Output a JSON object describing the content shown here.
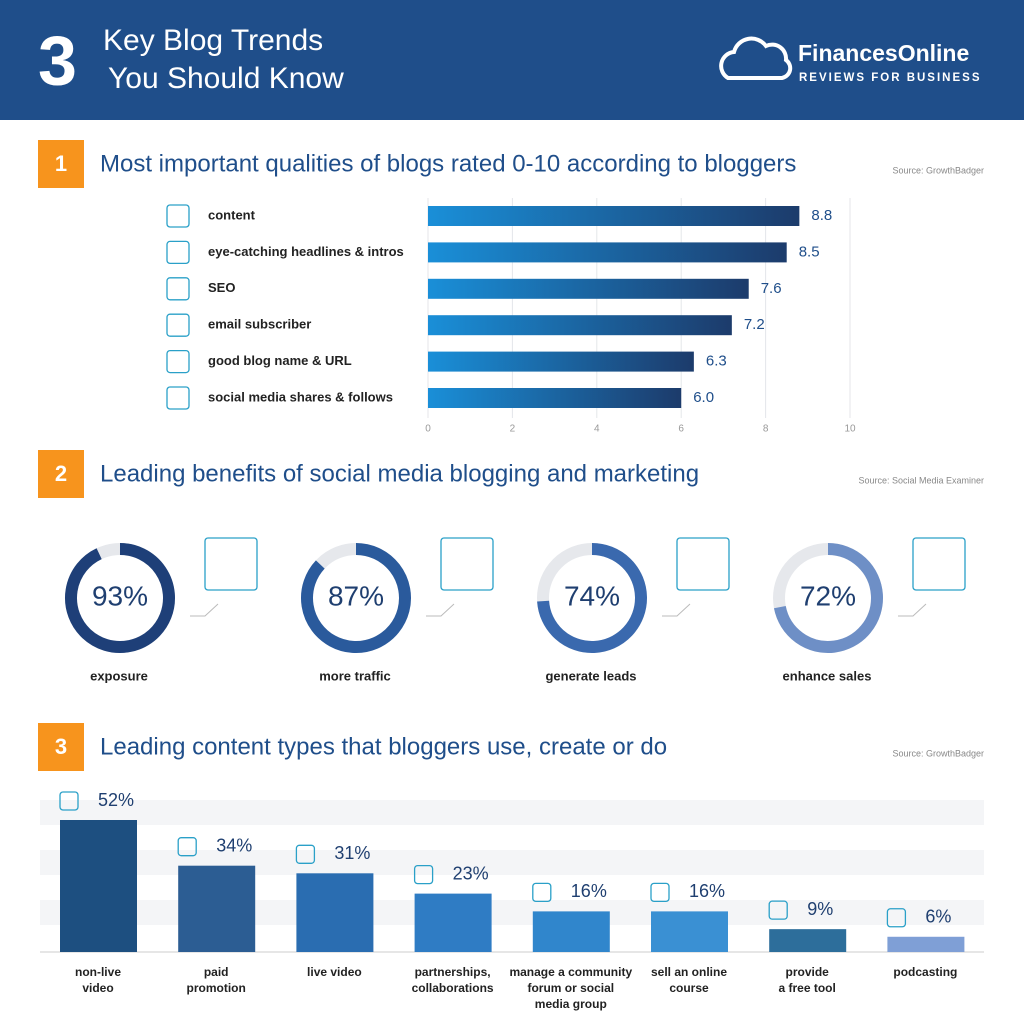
{
  "header": {
    "number": "3",
    "title_lines": [
      "Key Blog Trends",
      "You Should Know"
    ],
    "brand": "FinancesOnline",
    "tagline": "REVIEWS FOR BUSINESS"
  },
  "chart_data": [
    {
      "type": "hbar",
      "number": "1",
      "title": "Most important qualities of blogs rated 0-10 according to bloggers",
      "source": "Source: GrowthBadger",
      "categories": [
        "content",
        "eye-catching headlines & intros",
        "SEO",
        "email subscriber",
        "good blog name & URL",
        "social media shares & follows"
      ],
      "values": [
        8.8,
        8.5,
        7.6,
        7.2,
        6.3,
        6.0
      ],
      "value_labels": [
        "8.8",
        "8.5",
        "7.6",
        "7.2",
        "6.3",
        "6.0"
      ],
      "xlim": [
        0,
        10
      ],
      "xticks": [
        0,
        2,
        4,
        6,
        8,
        10
      ],
      "grid": true,
      "colors": [
        "#1a8fd8",
        "#1c3b6b"
      ]
    },
    {
      "type": "donut",
      "number": "2",
      "title": "Leading benefits of social media blogging and marketing",
      "source": "Source: Social Media Examiner",
      "categories": [
        "exposure",
        "more traffic",
        "generate leads",
        "enhance sales"
      ],
      "values": [
        93,
        87,
        74,
        72
      ],
      "value_labels": [
        "93%",
        "87%",
        "74%",
        "72%"
      ],
      "colors": [
        "#1e3f78",
        "#2a5a9c",
        "#3a69ae",
        "#6e8fc6"
      ]
    },
    {
      "type": "bar",
      "number": "3",
      "title": "Leading content types that bloggers use, create or do",
      "source": "Source: GrowthBadger",
      "categories": [
        "non-live\nvideo",
        "paid\npromotion",
        "live video",
        "partnerships,\ncollaborations",
        "manage a community\nforum or social\nmedia group",
        "sell an online\ncourse",
        "provide\na free tool",
        "podcasting"
      ],
      "values": [
        52,
        34,
        31,
        23,
        16,
        16,
        9,
        6
      ],
      "value_labels": [
        "52%",
        "34%",
        "31%",
        "23%",
        "16%",
        "16%",
        "9%",
        "6%"
      ],
      "colors": [
        "#1d4f80",
        "#2c5d93",
        "#2a6db1",
        "#2f7cc4",
        "#3086cc",
        "#3a90d3",
        "#2d6e9b",
        "#7f9fd6"
      ]
    }
  ]
}
